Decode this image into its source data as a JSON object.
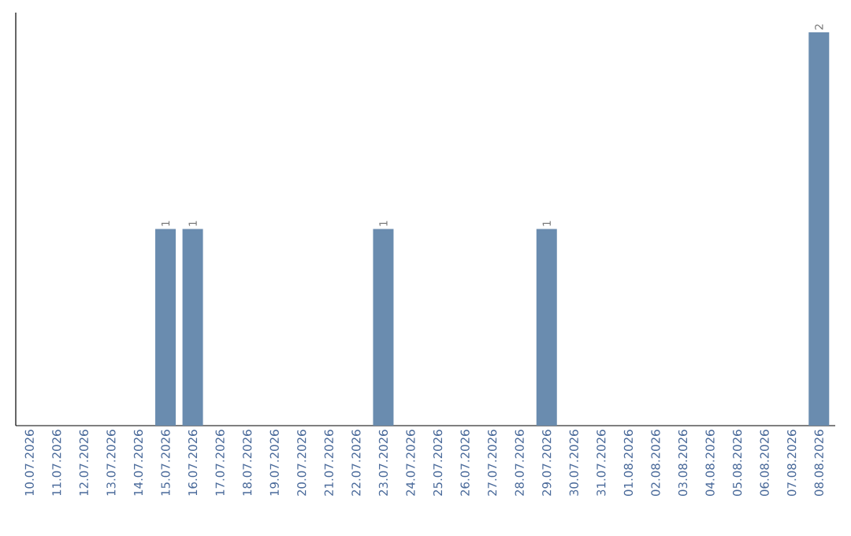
{
  "chart_data": {
    "type": "bar",
    "categories": [
      "10.07.2026",
      "11.07.2026",
      "12.07.2026",
      "13.07.2026",
      "14.07.2026",
      "15.07.2026",
      "16.07.2026",
      "17.07.2026",
      "18.07.2026",
      "19.07.2026",
      "20.07.2026",
      "21.07.2026",
      "22.07.2026",
      "23.07.2026",
      "24.07.2026",
      "25.07.2026",
      "26.07.2026",
      "27.07.2026",
      "28.07.2026",
      "29.07.2026",
      "30.07.2026",
      "31.07.2026",
      "01.08.2026",
      "02.08.2026",
      "03.08.2026",
      "04.08.2026",
      "05.08.2026",
      "06.08.2026",
      "07.08.2026",
      "08.08.2026"
    ],
    "values": [
      0,
      0,
      0,
      0,
      0,
      1,
      1,
      0,
      0,
      0,
      0,
      0,
      0,
      1,
      0,
      0,
      0,
      0,
      0,
      1,
      0,
      0,
      0,
      0,
      0,
      0,
      0,
      0,
      0,
      2
    ],
    "value_labels": [
      null,
      null,
      null,
      null,
      null,
      "1",
      "1",
      null,
      null,
      null,
      null,
      null,
      null,
      "1",
      null,
      null,
      null,
      null,
      null,
      "1",
      null,
      null,
      null,
      null,
      null,
      null,
      null,
      null,
      null,
      "2"
    ],
    "color": "#6a8caf"
  }
}
